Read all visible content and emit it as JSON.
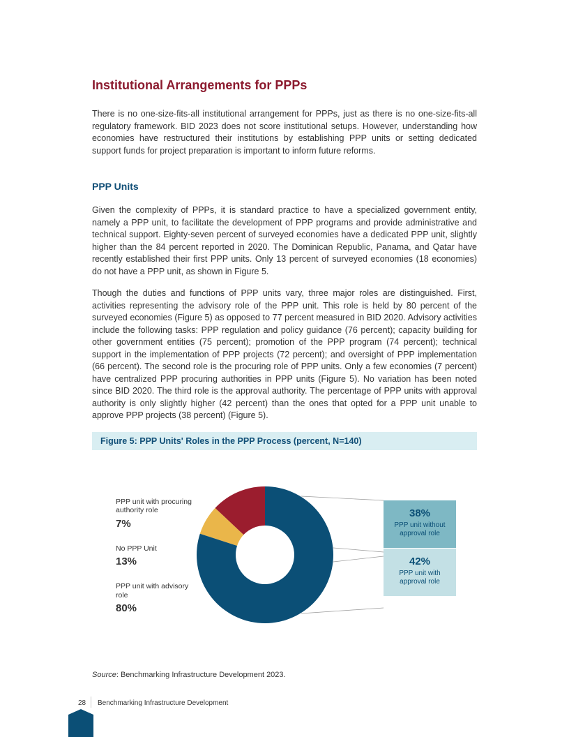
{
  "heading_color": "#8b1a2e",
  "subheading_color": "#114f77",
  "main_heading": "Institutional Arrangements for PPPs",
  "intro": "There is no one-size-fits-all institutional arrangement for PPPs, just as there is no one-size-fits-all regulatory framework. BID 2023 does not score institutional setups. However, understanding how economies have restructured their institutions by establishing PPP units or setting dedicated support funds for project preparation is important to inform future reforms.",
  "sub_heading": "PPP Units",
  "para1": "Given the complexity of PPPs, it is standard practice to have a specialized government entity, namely a PPP unit, to facilitate the development of PPP programs and provide administrative and technical support. Eighty-seven percent of surveyed economies have a dedicated PPP unit, slightly higher than the 84 percent reported in 2020. The Dominican Republic, Panama, and Qatar have recently established their first PPP units. Only 13 percent of surveyed economies (18 economies) do not have a PPP unit, as shown in Figure 5.",
  "para2": "Though the duties and functions of PPP units vary, three major roles are distinguished. First, activities representing the advisory role of the PPP unit. This role is held by 80 percent of the surveyed economies (Figure 5) as opposed to 77 percent measured in BID 2020. Advisory activities include the following tasks: PPP regulation and policy guidance (76 percent); capacity building for other government entities (75 percent); promotion of the PPP program (74 percent); technical support in the implementation of PPP projects (72 percent); and oversight of PPP implementation (66 percent). The second role is the procuring role of PPP units. Only a few economies (7 percent) have centralized PPP procuring authorities in PPP units (Figure 5). No variation has been noted since BID 2020. The third role is the approval authority. The percentage of PPP units with approval authority is only slightly higher (42 percent) than the ones that opted for a PPP unit unable to approve PPP projects (38 percent) (Figure 5).",
  "figure_title": "Figure 5: PPP Units' Roles in the PPP Process (percent, N=140)",
  "chart": {
    "type": "donut",
    "center_hole_ratio": 0.42,
    "background_color": "#ffffff",
    "slices": [
      {
        "label": "PPP unit with procuring authority role",
        "value": 7,
        "color": "#eab64a",
        "pct_text": "7%"
      },
      {
        "label": "No PPP Unit",
        "value": 13,
        "color": "#9b1d2e",
        "pct_text": "13%"
      },
      {
        "label": "PPP unit with advisory role",
        "value": 80,
        "color": "#0b4f76",
        "pct_text": "80%"
      }
    ],
    "right_boxes": [
      {
        "pct": "38%",
        "label": "PPP unit without approval role",
        "bg": "#7eb8c4",
        "text_color": "#0b4f76"
      },
      {
        "pct": "42%",
        "label": "PPP unit with approval role",
        "bg": "#c3e0e5",
        "text_color": "#0b4f76"
      }
    ],
    "callout_color": "#999999"
  },
  "source_label": "Source",
  "source_text": ": Benchmarking Infrastructure Development 2023.",
  "page_number": "28",
  "footer_title": "Benchmarking Infrastructure Development"
}
